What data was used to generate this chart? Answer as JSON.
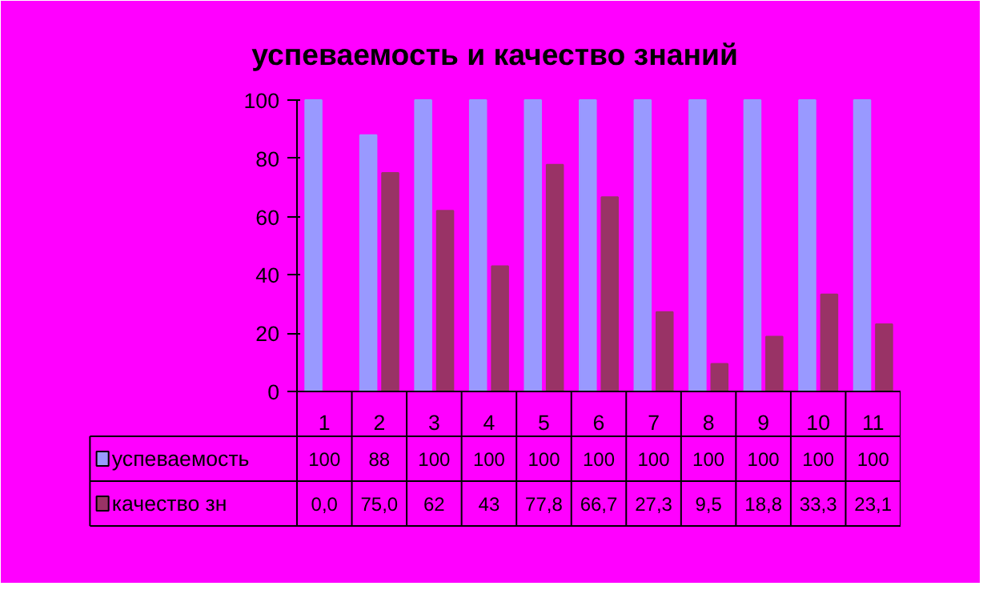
{
  "chart_data": {
    "type": "bar",
    "title": "успеваемость и качество знаний",
    "categories": [
      "1",
      "2",
      "3",
      "4",
      "5",
      "6",
      "7",
      "8",
      "9",
      "10",
      "11"
    ],
    "series": [
      {
        "name": "успеваемость",
        "color": "#9999ff",
        "values": [
          100,
          88,
          100,
          100,
          100,
          100,
          100,
          100,
          100,
          100,
          100
        ],
        "value_labels": [
          "100",
          "88",
          "100",
          "100",
          "100",
          "100",
          "100",
          "100",
          "100",
          "100",
          "100"
        ]
      },
      {
        "name": "качество зн",
        "color": "#993366",
        "values": [
          0.0,
          75.0,
          62,
          43,
          77.8,
          66.7,
          27.3,
          9.5,
          18.8,
          33.3,
          23.1
        ],
        "value_labels": [
          "0,0",
          "75,0",
          "62",
          "43",
          "77,8",
          "66,7",
          "27,3",
          "9,5",
          "18,8",
          "33,3",
          "23,1"
        ]
      }
    ],
    "ylim": [
      0,
      100
    ],
    "yticks": [
      0,
      20,
      40,
      60,
      80,
      100
    ],
    "grid": false,
    "legend": "bottom"
  }
}
